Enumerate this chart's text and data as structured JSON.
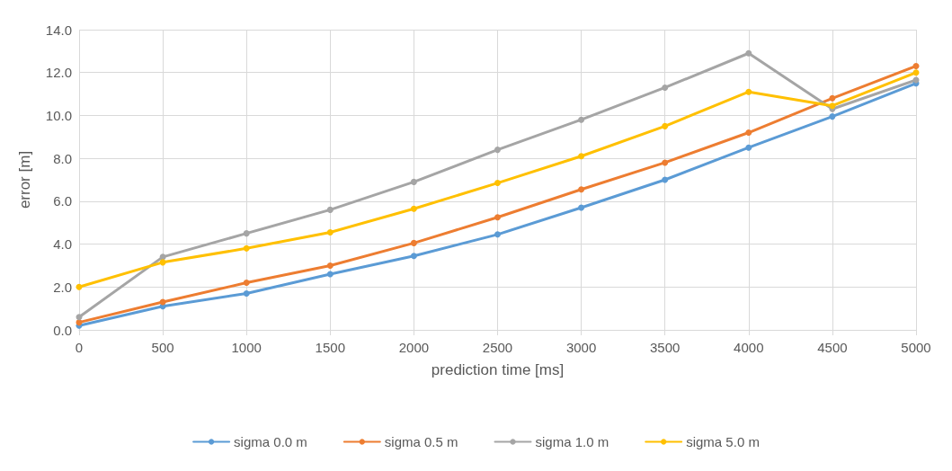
{
  "chart_data": {
    "type": "line",
    "xlabel": "prediction time [ms]",
    "ylabel": "error [m]",
    "x": [
      0,
      500,
      1000,
      1500,
      2000,
      2500,
      3000,
      3500,
      4000,
      4500,
      5000
    ],
    "series": [
      {
        "name": "sigma 0.0 m",
        "color": "#5b9bd5",
        "values": [
          0.2,
          1.1,
          1.7,
          2.6,
          3.45,
          4.45,
          5.7,
          7.0,
          8.5,
          9.95,
          11.5
        ]
      },
      {
        "name": "sigma 0.5 m",
        "color": "#ed7d31",
        "values": [
          0.35,
          1.3,
          2.2,
          3.0,
          4.05,
          5.25,
          6.55,
          7.8,
          9.2,
          10.8,
          12.3
        ]
      },
      {
        "name": "sigma 1.0 m",
        "color": "#a5a5a5",
        "values": [
          0.6,
          3.4,
          4.5,
          5.6,
          6.9,
          8.4,
          9.8,
          11.3,
          12.9,
          10.3,
          11.65
        ]
      },
      {
        "name": "sigma 5.0 m",
        "color": "#ffc000",
        "values": [
          2.0,
          3.15,
          3.8,
          4.55,
          5.65,
          6.85,
          8.1,
          9.5,
          11.1,
          10.45,
          12.0
        ]
      }
    ],
    "xlim": [
      0,
      5000
    ],
    "xticks": [
      0,
      500,
      1000,
      1500,
      2000,
      2500,
      3000,
      3500,
      4000,
      4500,
      5000
    ],
    "ylim": [
      0,
      14
    ],
    "yticks": [
      {
        "value": 0,
        "label": "0.0"
      },
      {
        "value": 2,
        "label": "2.0"
      },
      {
        "value": 4,
        "label": "4.0"
      },
      {
        "value": 6,
        "label": "6.0"
      },
      {
        "value": 8,
        "label": "8.0"
      },
      {
        "value": 10,
        "label": "10.0"
      },
      {
        "value": 12,
        "label": "12.0"
      },
      {
        "value": 14,
        "label": "14.0"
      }
    ],
    "grid": true,
    "legend": "bottom",
    "marker": "circle",
    "line_style": "solid"
  }
}
